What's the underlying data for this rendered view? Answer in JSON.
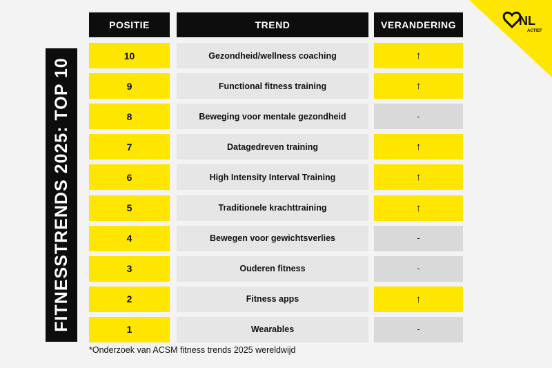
{
  "banner": "FITNESSTRENDS 2025: TOP 10",
  "logo": {
    "text": "NL",
    "sub": "ACTIEF"
  },
  "table": {
    "columns": [
      "POSITIE",
      "TREND",
      "VERANDERING"
    ],
    "rows": [
      [
        "10",
        "Gezondheid/wellness coaching",
        "↑"
      ],
      [
        "9",
        "Functional fitness training",
        "↑"
      ],
      [
        "8",
        "Beweging voor mentale gezondheid",
        "-"
      ],
      [
        "7",
        "Datagedreven training",
        "↑"
      ],
      [
        "6",
        "High Intensity Interval Training",
        "↑"
      ],
      [
        "5",
        "Traditionele krachttraining",
        "↑"
      ],
      [
        "4",
        "Bewegen voor gewichtsverlies",
        "-"
      ],
      [
        "3",
        "Ouderen fitness",
        "-"
      ],
      [
        "2",
        "Fitness apps",
        "↑"
      ],
      [
        "1",
        "Wearables",
        "-"
      ]
    ]
  },
  "footnote": "*Onderzoek van ACSM fitness trends 2025 wereldwijd"
}
